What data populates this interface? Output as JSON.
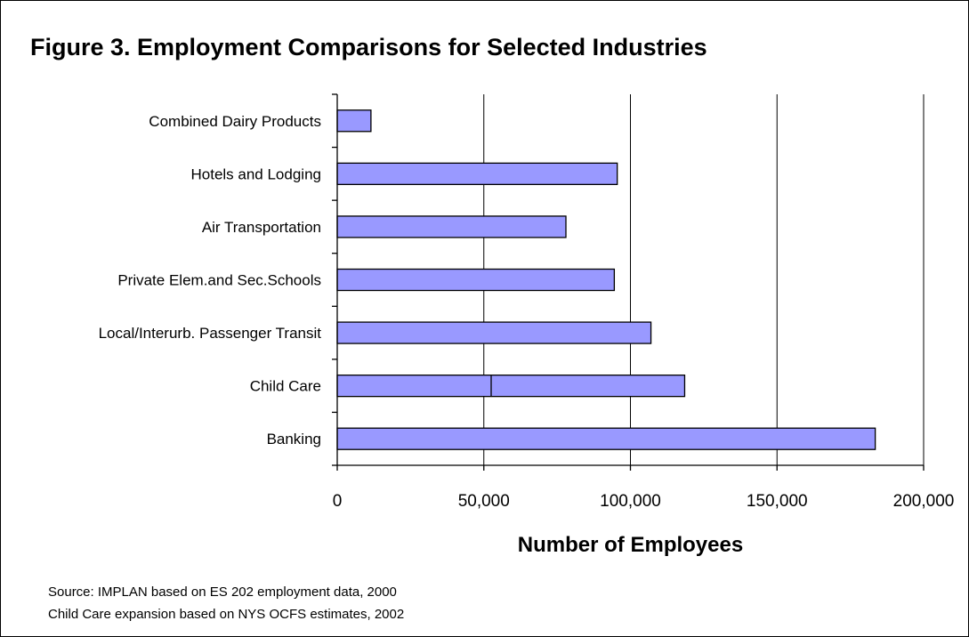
{
  "chart_data": {
    "type": "bar",
    "orientation": "horizontal",
    "title": "Figure 3. Employment Comparisons for Selected Industries",
    "xlabel": "Number of Employees",
    "ylabel": "",
    "categories": [
      "Combined Dairy Products",
      "Hotels and Lodging",
      "Air Transportation",
      "Private Elem.and Sec.Schools",
      "Local/Interurb. Passenger Transit",
      "Child Care",
      "Banking"
    ],
    "values": [
      11500,
      95500,
      78000,
      94500,
      107000,
      118500,
      183500
    ],
    "inner_segment": {
      "category": "Child Care",
      "value": 52500
    },
    "xlim": [
      0,
      200000
    ],
    "xticks": [
      0,
      50000,
      100000,
      150000,
      200000
    ],
    "xtick_labels": [
      "0",
      "50,000",
      "100,000",
      "150,000",
      "200,000"
    ],
    "grid": "vertical",
    "bar_color": "#9999ff",
    "legend": "none"
  },
  "notes": [
    "Source:  IMPLAN based on ES 202 employment data, 2000",
    "Child Care expansion based on NYS OCFS estimates, 2002"
  ]
}
